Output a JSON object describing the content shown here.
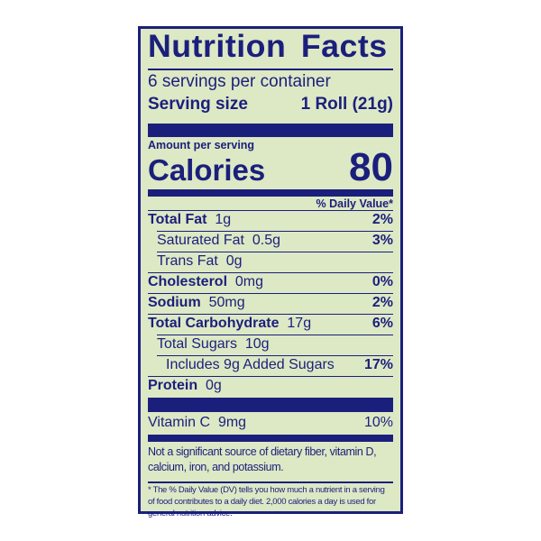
{
  "title": "Nutrition Facts",
  "servings_per_container": "6 servings per container",
  "serving_size_label": "Serving size",
  "serving_size_value": "1 Roll (21g)",
  "amount_per_serving": "Amount per serving",
  "calories_label": "Calories",
  "calories_value": "80",
  "daily_value_header": "% Daily Value*",
  "nutrients": [
    {
      "name": "Total Fat",
      "amount": "1g",
      "dv": "2%"
    },
    {
      "name": "Saturated Fat",
      "amount": "0.5g",
      "dv": "3%"
    },
    {
      "name": "Trans Fat",
      "amount": "0g",
      "dv": ""
    },
    {
      "name": "Cholesterol",
      "amount": "0mg",
      "dv": "0%"
    },
    {
      "name": "Sodium",
      "amount": "50mg",
      "dv": "2%"
    },
    {
      "name": "Total Carbohydrate",
      "amount": "17g",
      "dv": "6%"
    },
    {
      "name": "Total Sugars",
      "amount": "10g",
      "dv": ""
    },
    {
      "name": "Includes 9g Added Sugars",
      "amount": "",
      "dv": "17%"
    },
    {
      "name": "Protein",
      "amount": "0g",
      "dv": ""
    }
  ],
  "vitamins": [
    {
      "name": "Vitamin C",
      "amount": "9mg",
      "dv": "10%"
    }
  ],
  "not_significant": "Not a significant source of dietary fiber, vitamin D, calcium, iron, and potassium.",
  "footnote": "* The % Daily Value (DV) tells you how much a nutrient in a serving of food contributes to a daily diet. 2,000 calories a day is used for general nutrition advice.",
  "colors": {
    "ink": "#1b1f7c",
    "background": "#dde8c5"
  }
}
